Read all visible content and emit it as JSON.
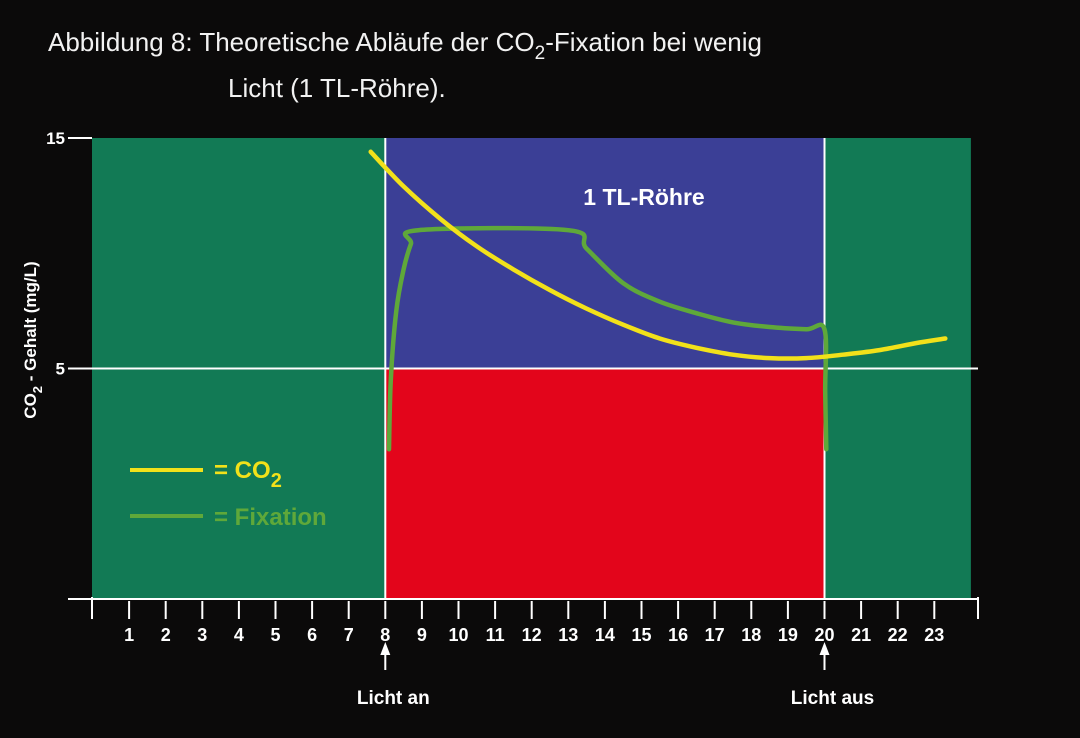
{
  "chart_data": {
    "type": "line",
    "title": {
      "prefix": "Abbildung 8: Theoretische Abläufe der CO",
      "sub": "2",
      "suffix": "-Fixation bei wenig",
      "line2": "Licht (1 TL-Röhre)."
    },
    "ylabel": {
      "main": "CO",
      "sub": "2",
      "rest": " - Gehalt (mg/L)"
    },
    "yticks": [
      "15",
      "5"
    ],
    "ylim": [
      -5,
      15
    ],
    "xlim": [
      -0.1,
      24
    ],
    "xticks": [
      "1",
      "2",
      "3",
      "4",
      "5",
      "6",
      "7",
      "8",
      "9",
      "10",
      "11",
      "12",
      "13",
      "14",
      "15",
      "16",
      "17",
      "18",
      "19",
      "20",
      "21",
      "22",
      "23"
    ],
    "xtick_values": [
      1,
      2,
      3,
      4,
      5,
      6,
      7,
      8,
      9,
      10,
      11,
      12,
      13,
      14,
      15,
      16,
      17,
      18,
      19,
      20,
      21,
      22,
      23
    ],
    "regions": [
      {
        "x0": -0.1,
        "x1": 8,
        "y0": -5,
        "y1": 15,
        "color": "#127a55"
      },
      {
        "x0": 20,
        "x1": 24,
        "y0": -5,
        "y1": 15,
        "color": "#127a55"
      },
      {
        "x0": 8,
        "x1": 20,
        "y0": 5,
        "y1": 15,
        "color": "#3b3f96"
      },
      {
        "x0": 8,
        "x1": 20,
        "y0": -5,
        "y1": 5,
        "color": "#e3051b"
      }
    ],
    "vlines": [
      8,
      20
    ],
    "hline": 5,
    "region_label": "1 TL-Röhre",
    "annotations": [
      {
        "text": "Licht an",
        "x": 8
      },
      {
        "text": "Licht aus",
        "x": 20
      }
    ],
    "legend": [
      {
        "label_main": "= CO",
        "label_sub": "2",
        "color": "#f2e11a"
      },
      {
        "label_main": "= Fixation",
        "label_sub": "",
        "color": "#5fa83a"
      }
    ],
    "series": [
      {
        "color": "#f2e11a",
        "x": [
          7.6,
          8.5,
          9.5,
          10.5,
          11.5,
          12.5,
          13.5,
          14.5,
          15.5,
          16.5,
          17.5,
          18.5,
          19.5,
          20.5,
          21.5,
          22.5,
          23.3
        ],
        "y": [
          14.4,
          12.9,
          11.5,
          10.3,
          9.3,
          8.4,
          7.6,
          6.9,
          6.3,
          5.9,
          5.6,
          5.45,
          5.45,
          5.6,
          5.8,
          6.1,
          6.3
        ]
      },
      {
        "color": "#5fa83a",
        "x": [
          8.1,
          8.15,
          8.3,
          8.5,
          8.7,
          8.9,
          13.0,
          13.5,
          14.5,
          15.5,
          16.5,
          17.5,
          18.5,
          19.5,
          20.0,
          20.02,
          20.05
        ],
        "y": [
          1.5,
          4.5,
          7.5,
          9.3,
          10.4,
          11.0,
          11.0,
          10.2,
          8.7,
          7.9,
          7.4,
          7.0,
          6.8,
          6.7,
          6.7,
          4.0,
          1.5
        ]
      }
    ]
  }
}
